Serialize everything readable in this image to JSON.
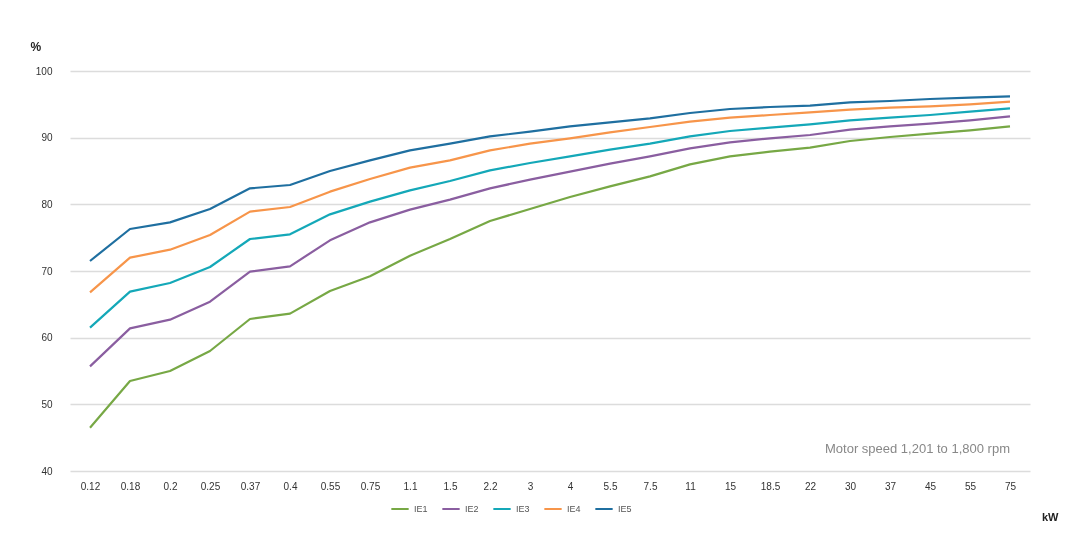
{
  "chart_data": {
    "type": "line",
    "ylabel": "%",
    "xlabel": "kW",
    "categories": [
      "0.12",
      "0.18",
      "0.2",
      "0.25",
      "0.37",
      "0.4",
      "0.55",
      "0.75",
      "1.1",
      "1.5",
      "2.2",
      "3",
      "4",
      "5.5",
      "7.5",
      "11",
      "15",
      "18.5",
      "22",
      "30",
      "37",
      "45",
      "55",
      "75"
    ],
    "series": [
      {
        "name": "IE1",
        "color": "#77a845",
        "values": [
          46.5,
          53.5,
          55,
          58,
          62.8,
          63.6,
          67,
          69.2,
          72.3,
          74.8,
          77.5,
          79.3,
          81.1,
          82.7,
          84.2,
          86,
          87.2,
          87.9,
          88.5,
          89.5,
          90.1,
          90.6,
          91.1,
          91.7
        ]
      },
      {
        "name": "IE2",
        "color": "#8a5ea0",
        "values": [
          55.7,
          61.4,
          62.7,
          65.4,
          69.9,
          70.7,
          74.6,
          77.3,
          79.2,
          80.7,
          82.4,
          83.7,
          84.9,
          86.1,
          87.2,
          88.4,
          89.3,
          89.9,
          90.4,
          91.2,
          91.7,
          92.1,
          92.6,
          93.2
        ]
      },
      {
        "name": "IE3",
        "color": "#14a8b8",
        "values": [
          61.5,
          66.9,
          68.2,
          70.6,
          74.8,
          75.5,
          78.5,
          80.4,
          82.1,
          83.5,
          85.1,
          86.2,
          87.2,
          88.2,
          89.1,
          90.2,
          91,
          91.5,
          92,
          92.6,
          93,
          93.4,
          93.9,
          94.4
        ]
      },
      {
        "name": "IE4",
        "color": "#f7954a",
        "values": [
          66.8,
          72,
          73.2,
          75.4,
          78.9,
          79.6,
          81.9,
          83.8,
          85.5,
          86.6,
          88.1,
          89.1,
          89.9,
          90.8,
          91.6,
          92.4,
          93,
          93.4,
          93.8,
          94.2,
          94.5,
          94.7,
          95,
          95.4
        ]
      },
      {
        "name": "IE5",
        "color": "#1f6fa0",
        "values": [
          71.5,
          76.3,
          77.3,
          79.3,
          82.4,
          82.9,
          85,
          86.6,
          88.1,
          89.1,
          90.2,
          90.9,
          91.7,
          92.3,
          92.9,
          93.7,
          94.3,
          94.6,
          94.8,
          95.3,
          95.5,
          95.8,
          96,
          96.2
        ]
      }
    ],
    "ylim": [
      40,
      100
    ],
    "yticks": [
      40,
      50,
      60,
      70,
      80,
      90,
      100
    ],
    "grid": "y",
    "legend": "bottom",
    "annotations": [
      "Motor speed 1,201 to 1,800 rpm"
    ]
  }
}
